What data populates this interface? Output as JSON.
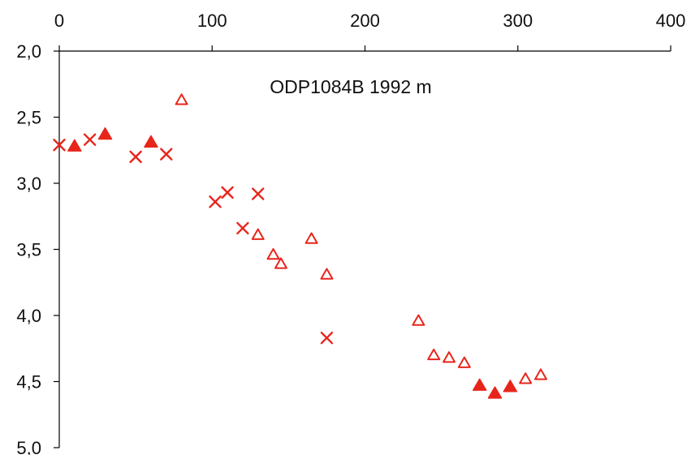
{
  "chart_data": {
    "type": "scatter",
    "title": "ODP1084B 1992 m",
    "xlabel": "",
    "ylabel": "",
    "xlim": [
      0,
      400
    ],
    "ylim": [
      2.0,
      5.0
    ],
    "y_inverted": true,
    "x_axis_position": "top",
    "x_ticks": [
      "0",
      "100",
      "200",
      "300",
      "400"
    ],
    "y_ticks": [
      "2,0",
      "2,5",
      "3,0",
      "3,5",
      "4,0",
      "4,5",
      "5,0"
    ],
    "grid": false,
    "legend": "none",
    "marker_color": "#e8251b",
    "series": [
      {
        "marker": "cross",
        "points": [
          {
            "x": 0,
            "y": 2.71
          },
          {
            "x": 20,
            "y": 2.67
          },
          {
            "x": 50,
            "y": 2.8
          },
          {
            "x": 70,
            "y": 2.78
          },
          {
            "x": 102,
            "y": 3.14
          },
          {
            "x": 110,
            "y": 3.07
          },
          {
            "x": 120,
            "y": 3.34
          },
          {
            "x": 130,
            "y": 3.08
          },
          {
            "x": 175,
            "y": 4.17
          }
        ]
      },
      {
        "marker": "filled-triangle",
        "points": [
          {
            "x": 10,
            "y": 2.72
          },
          {
            "x": 30,
            "y": 2.63
          },
          {
            "x": 60,
            "y": 2.69
          },
          {
            "x": 275,
            "y": 4.53
          },
          {
            "x": 285,
            "y": 4.59
          },
          {
            "x": 295,
            "y": 4.54
          }
        ]
      },
      {
        "marker": "open-triangle",
        "points": [
          {
            "x": 80,
            "y": 2.37
          },
          {
            "x": 130,
            "y": 3.39
          },
          {
            "x": 140,
            "y": 3.54
          },
          {
            "x": 145,
            "y": 3.61
          },
          {
            "x": 165,
            "y": 3.42
          },
          {
            "x": 175,
            "y": 3.69
          },
          {
            "x": 235,
            "y": 4.04
          },
          {
            "x": 245,
            "y": 4.3
          },
          {
            "x": 255,
            "y": 4.32
          },
          {
            "x": 265,
            "y": 4.36
          },
          {
            "x": 305,
            "y": 4.48
          },
          {
            "x": 315,
            "y": 4.45
          }
        ]
      }
    ]
  }
}
